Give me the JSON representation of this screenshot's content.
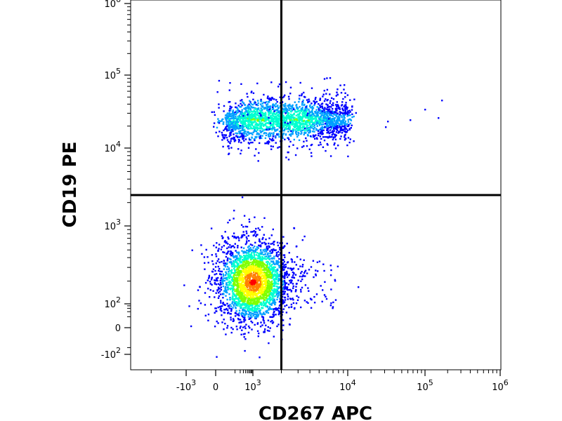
{
  "chart_data": {
    "type": "scatter",
    "subtype": "flow-cytometry density plot with quadrant gates",
    "xlabel": "CD267 APC",
    "ylabel": "CD19 PE",
    "x_scale": "biexponential (log with linear region near 0)",
    "y_scale": "biexponential (log with linear region near 0)",
    "xlim": [
      -3000,
      1000000
    ],
    "ylim": [
      -200,
      1000000
    ],
    "x_ticks": [
      {
        "value": -1000,
        "base": "-10",
        "exp": "3"
      },
      {
        "value": 0,
        "base": "0",
        "exp": ""
      },
      {
        "value": 1000,
        "base": "10",
        "exp": "3"
      },
      {
        "value": 10000,
        "base": "10",
        "exp": "4"
      },
      {
        "value": 100000,
        "base": "10",
        "exp": "5"
      },
      {
        "value": 1000000,
        "base": "10",
        "exp": "6"
      }
    ],
    "y_ticks": [
      {
        "value": -100,
        "base": "-10",
        "exp": "2"
      },
      {
        "value": 0,
        "base": "0",
        "exp": ""
      },
      {
        "value": 100,
        "base": "10",
        "exp": "2"
      },
      {
        "value": 1000,
        "base": "10",
        "exp": "3"
      },
      {
        "value": 10000,
        "base": "10",
        "exp": "4"
      },
      {
        "value": 100000,
        "base": "10",
        "exp": "5"
      },
      {
        "value": 1000000,
        "base": "10",
        "exp": "6"
      }
    ],
    "quadrant_gate": {
      "x": 2000,
      "y": 2500
    },
    "populations": [
      {
        "center_x": 900,
        "center_y": 200,
        "description": "CD19- cluster (highest density)"
      },
      {
        "center_x": 2000,
        "center_y": 25000,
        "description": "CD19+ band spanning CD267- and CD267+"
      }
    ],
    "colormap": [
      "#0000ff",
      "#00a0ff",
      "#00ffd0",
      "#80ff00",
      "#ffff00",
      "#ff8000",
      "#ff0000"
    ],
    "grid": false,
    "legend": "none"
  }
}
